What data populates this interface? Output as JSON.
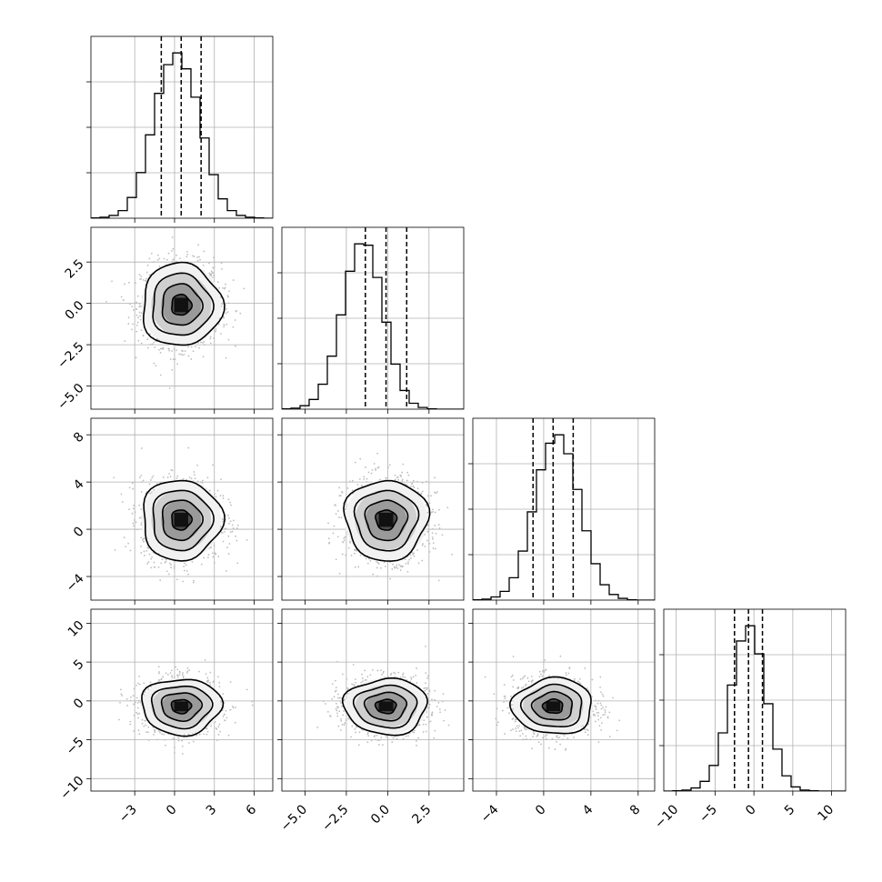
{
  "chart_data": {
    "type": "corner",
    "title": "",
    "grid": true,
    "colors": {
      "line": "#000000",
      "grid": "#b0b0b0",
      "points": "#bdbdbd",
      "density": "#000000"
    },
    "params": [
      {
        "center": 0.5,
        "sigma": 1.5,
        "q": [
          -1.0,
          0.5,
          2.0
        ],
        "ticks": [
          -3,
          0,
          3,
          6
        ],
        "tick_labels": [
          "−3",
          "0",
          "3",
          "6"
        ],
        "range": [
          -6.3,
          7.4
        ]
      },
      {
        "center": -0.1,
        "sigma": 1.25,
        "q": [
          -1.35,
          -0.1,
          1.15
        ],
        "ticks": [
          -5.0,
          -2.5,
          0.0,
          2.5
        ],
        "tick_labels": [
          "−5.0",
          "−2.5",
          "0.0",
          "2.5"
        ],
        "range": [
          -6.4,
          4.6
        ]
      },
      {
        "center": 0.8,
        "sigma": 1.7,
        "q": [
          -0.9,
          0.8,
          2.5
        ],
        "ticks": [
          -4,
          0,
          4,
          8
        ],
        "tick_labels": [
          "−4",
          "0",
          "4",
          "8"
        ],
        "range": [
          -6.0,
          9.4
        ]
      },
      {
        "center": -0.7,
        "sigma": 1.8,
        "q": [
          -2.5,
          -0.7,
          1.1
        ],
        "ticks": [
          -10,
          -5,
          0,
          5,
          10
        ],
        "tick_labels": [
          "−10",
          "−5",
          "0",
          "5",
          "10"
        ],
        "range": [
          -11.6,
          11.8
        ]
      }
    ],
    "histograms": [
      {
        "edges": [
          -6.3,
          -5.615,
          -4.93,
          -4.245,
          -3.56,
          -2.875,
          -2.19,
          -1.505,
          -0.82,
          -0.135,
          0.55,
          1.235,
          1.92,
          2.605,
          3.29,
          3.975,
          4.66,
          5.345,
          6.03,
          6.715,
          7.4
        ],
        "counts": [
          1,
          3,
          8,
          22,
          60,
          132,
          241,
          361,
          444,
          478,
          432,
          350,
          232,
          126,
          56,
          22,
          8,
          3,
          1,
          0
        ]
      },
      {
        "edges": [
          -6.4,
          -5.85,
          -5.3,
          -4.75,
          -4.2,
          -3.65,
          -3.1,
          -2.55,
          -2.0,
          -1.45,
          -0.9,
          -0.35,
          0.2,
          0.75,
          1.3,
          1.85,
          2.4,
          2.95,
          3.5,
          4.05,
          4.6
        ],
        "counts": [
          1,
          3,
          10,
          28,
          72,
          153,
          272,
          398,
          477,
          473,
          380,
          251,
          130,
          54,
          17,
          5,
          1,
          0,
          0,
          0
        ]
      },
      {
        "edges": [
          -6.0,
          -5.23,
          -4.46,
          -3.69,
          -2.92,
          -2.15,
          -1.38,
          -0.61,
          0.16,
          0.93,
          1.7,
          2.47,
          3.24,
          4.01,
          4.78,
          5.55,
          6.32,
          7.09,
          7.86,
          8.63,
          9.4
        ],
        "counts": [
          1,
          3,
          9,
          25,
          64,
          140,
          252,
          372,
          448,
          472,
          418,
          316,
          198,
          104,
          44,
          16,
          5,
          1,
          0,
          0
        ]
      },
      {
        "edges": [
          -11.6,
          -10.43,
          -9.26,
          -8.09,
          -6.92,
          -5.75,
          -4.58,
          -3.41,
          -2.24,
          -1.07,
          0.1,
          1.27,
          2.44,
          3.61,
          4.78,
          5.95,
          7.12,
          8.29,
          9.46,
          10.63,
          11.8
        ],
        "counts": [
          0,
          1,
          3,
          9,
          28,
          74,
          168,
          306,
          433,
          477,
          396,
          252,
          121,
          44,
          12,
          3,
          1,
          0,
          0,
          0
        ]
      }
    ],
    "contour_levels_sigma": [
      0.5,
      1.0,
      1.5,
      2.0
    ]
  }
}
